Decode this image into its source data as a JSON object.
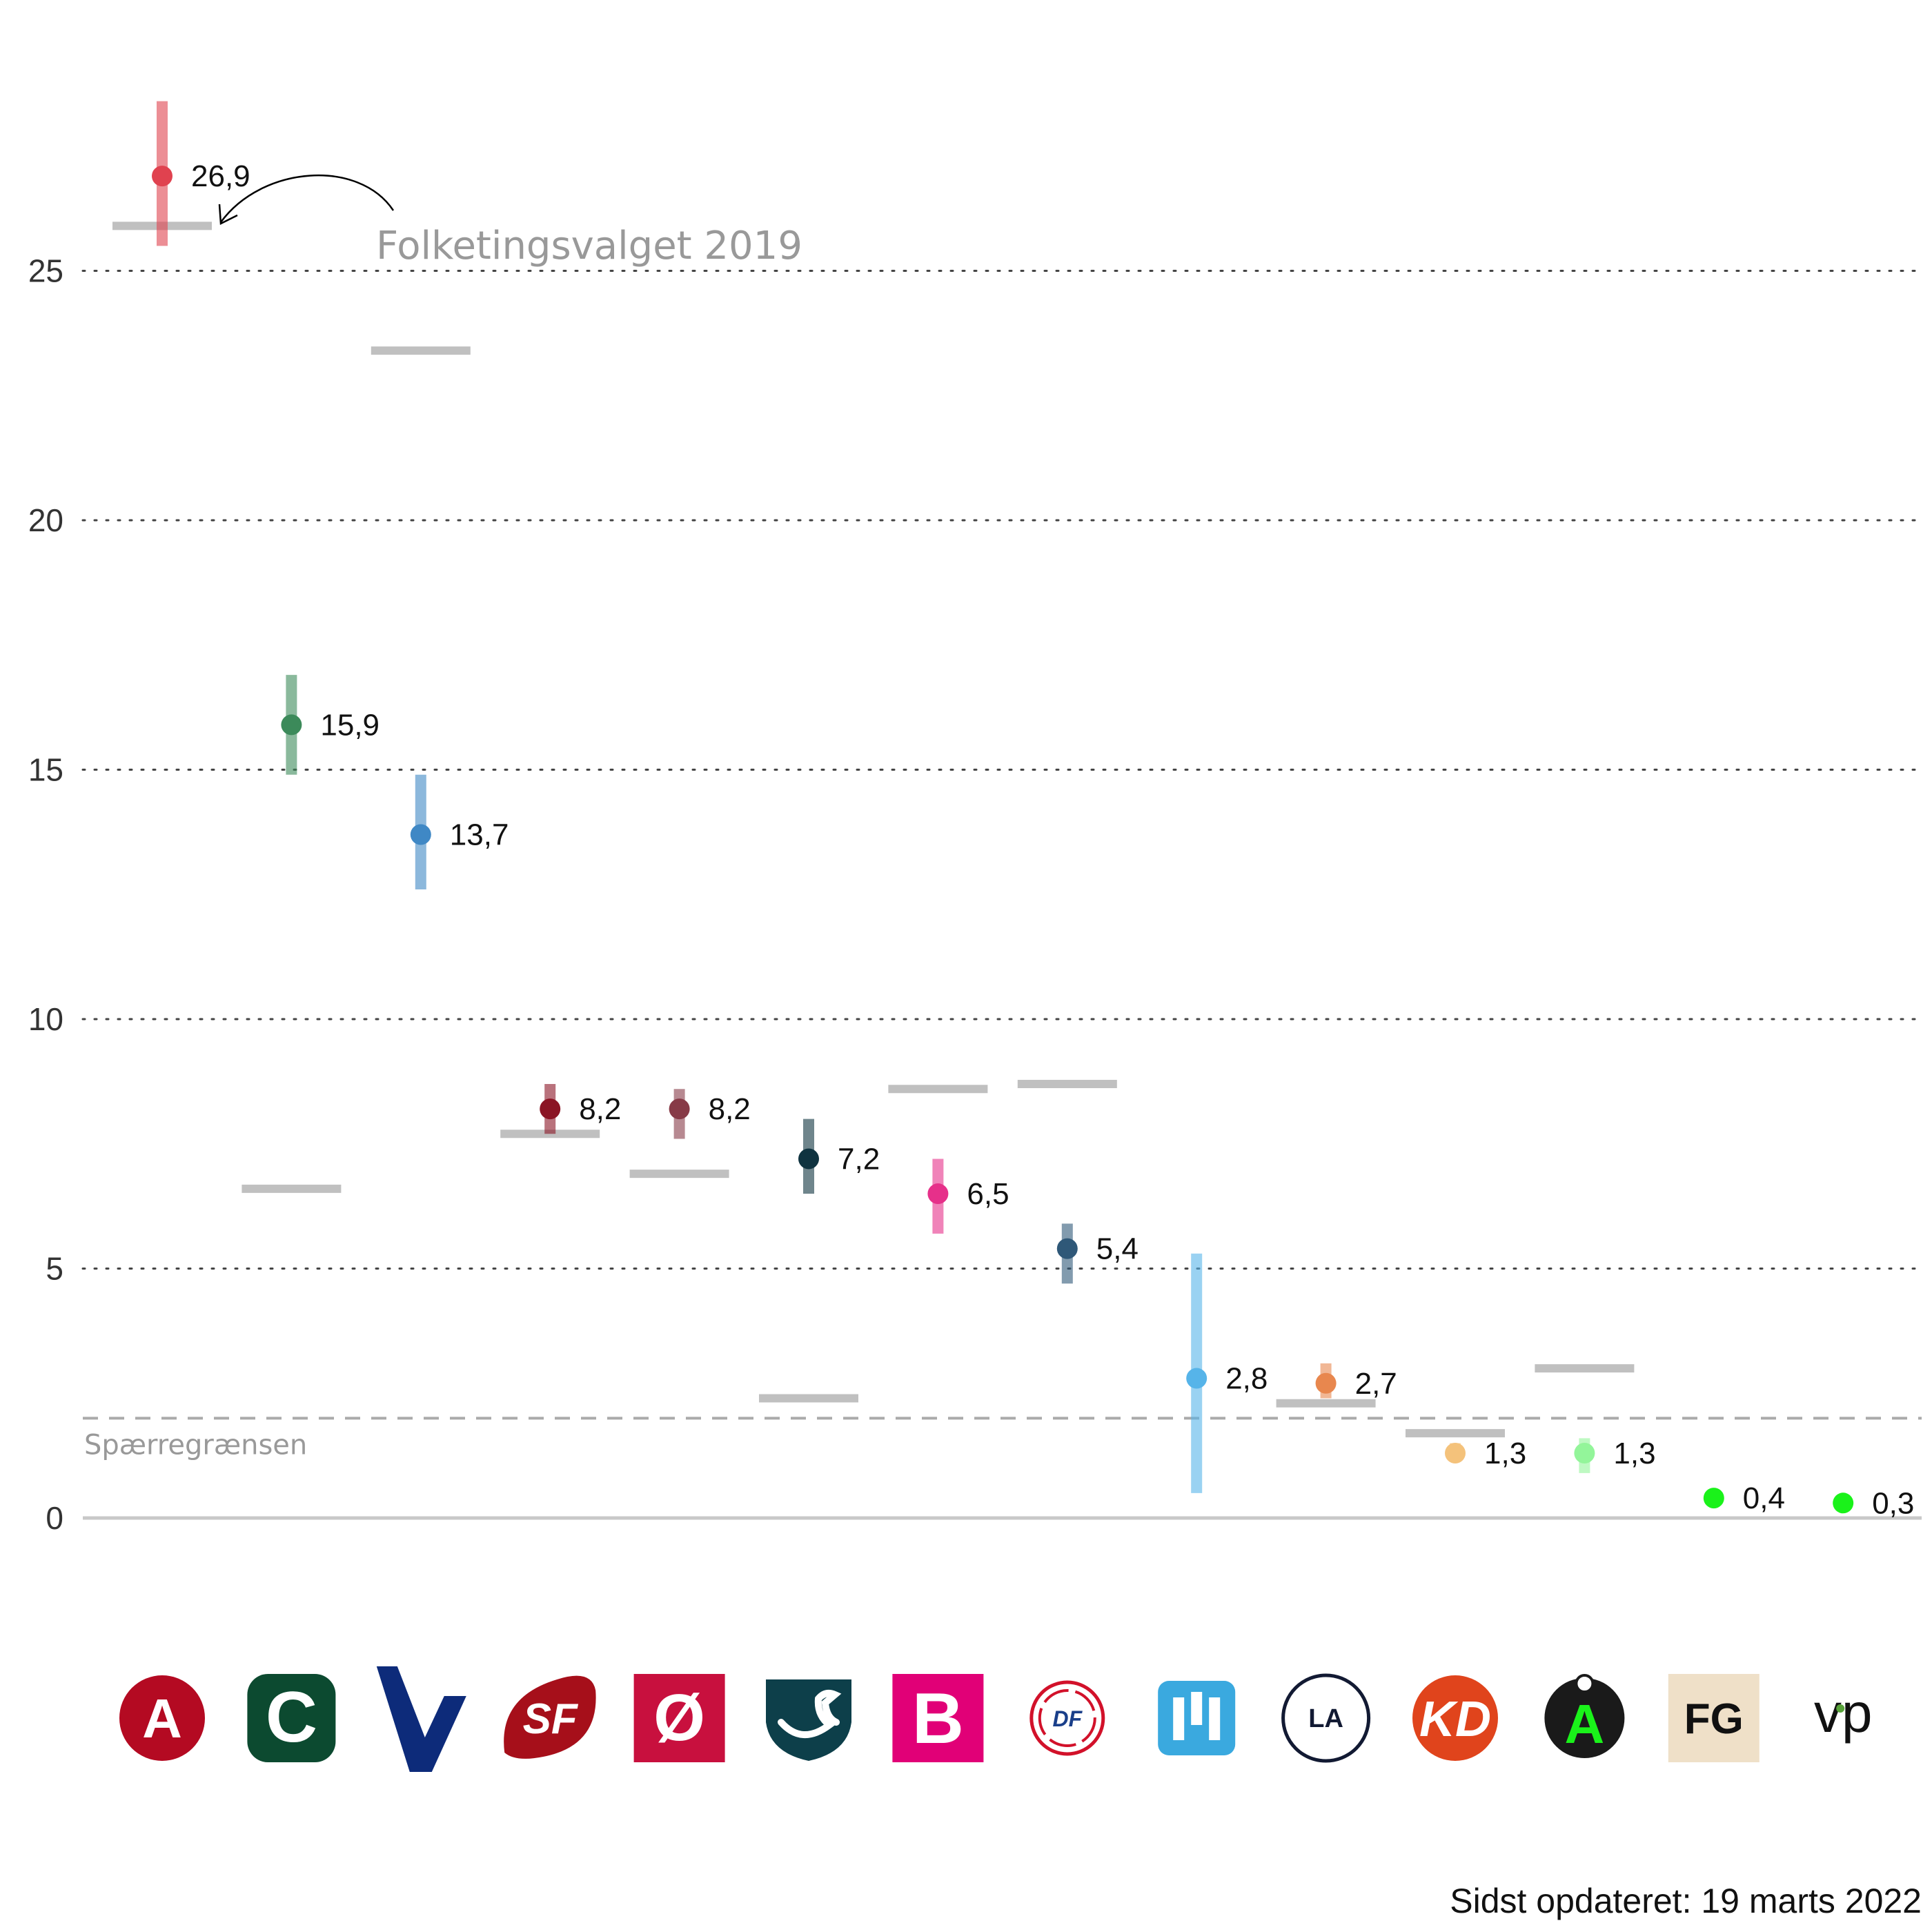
{
  "chart_data": {
    "type": "scatter",
    "title": "",
    "xlabel": "",
    "ylabel": "",
    "ylim": [
      0,
      28
    ],
    "yticks": [
      0,
      5,
      10,
      15,
      20,
      25
    ],
    "grid": "dotted horizontal",
    "threshold": {
      "value": 2,
      "label": "Spærregrænsen"
    },
    "annotation": "Folketingsvalget 2019",
    "parties": [
      {
        "letter": "A",
        "color": "#e0424f",
        "value": 26.9,
        "label": "26,9",
        "low": 25.5,
        "high": 28.4,
        "election": 25.9
      },
      {
        "letter": "C",
        "color": "#3c8a5a",
        "value": 15.9,
        "label": "15,9",
        "low": 14.9,
        "high": 16.9,
        "election": 6.6
      },
      {
        "letter": "V",
        "color": "#3f88c5",
        "value": 13.7,
        "label": "13,7",
        "low": 12.6,
        "high": 14.9,
        "election": 23.4
      },
      {
        "letter": "SF",
        "color": "#8b1424",
        "value": 8.2,
        "label": "8,2",
        "low": 7.7,
        "high": 8.7,
        "election": 7.7
      },
      {
        "letter": "Ø",
        "color": "#873a47",
        "value": 8.2,
        "label": "8,2",
        "low": 7.6,
        "high": 8.6,
        "election": 6.9
      },
      {
        "letter": "D",
        "color": "#0f3340",
        "value": 7.2,
        "label": "7,2",
        "low": 6.5,
        "high": 8.0,
        "election": 2.4
      },
      {
        "letter": "B",
        "color": "#e6308a",
        "value": 6.5,
        "label": "6,5",
        "low": 5.7,
        "high": 7.2,
        "election": 8.6
      },
      {
        "letter": "DF",
        "color": "#2f5878",
        "value": 5.4,
        "label": "5,4",
        "low": 4.7,
        "high": 5.9,
        "election": 8.7
      },
      {
        "letter": "M",
        "color": "#56b4e9",
        "value": 2.8,
        "label": "2,8",
        "low": 0.5,
        "high": 5.3,
        "election": null
      },
      {
        "letter": "LA",
        "color": "#e8874e",
        "value": 2.7,
        "label": "2,7",
        "low": 2.4,
        "high": 3.1,
        "election": 2.3
      },
      {
        "letter": "KD",
        "color": "#f4c27b",
        "value": 1.3,
        "label": "1,3",
        "low": 1.2,
        "high": 1.5,
        "election": 1.7
      },
      {
        "letter": "Å",
        "color": "#93f59a",
        "value": 1.3,
        "label": "1,3",
        "low": 0.9,
        "high": 1.6,
        "election": 3.0
      },
      {
        "letter": "FG",
        "color": "#1af21a",
        "value": 0.4,
        "label": "0,4",
        "low": 0.4,
        "high": 0.4,
        "election": null
      },
      {
        "letter": "vp",
        "color": "#1af21a",
        "value": 0.3,
        "label": "0,3",
        "low": 0.3,
        "high": 0.3,
        "election": null
      }
    ]
  },
  "logos": [
    {
      "name": "logo-a",
      "text": "A",
      "color": "#b40a22"
    },
    {
      "name": "logo-c",
      "text": "C",
      "color": "#0c4a30"
    },
    {
      "name": "logo-v",
      "text": "V",
      "color": "#0d2b7a"
    },
    {
      "name": "logo-sf",
      "text": "SF",
      "color": "#a60f1a"
    },
    {
      "name": "logo-o",
      "text": "Ø",
      "color": "#c8103e"
    },
    {
      "name": "logo-d",
      "text": "",
      "color": "#0d3f4a"
    },
    {
      "name": "logo-b",
      "text": "B",
      "color": "#e10077"
    },
    {
      "name": "logo-df",
      "text": "DF",
      "color": "#d2112a"
    },
    {
      "name": "logo-m",
      "text": "",
      "color": "#3aa9df"
    },
    {
      "name": "logo-la",
      "text": "LA",
      "color": "#121a33"
    },
    {
      "name": "logo-kd",
      "text": "KD",
      "color": "#e0441c"
    },
    {
      "name": "logo-aa",
      "text": "Å",
      "color": "#1a1a1a"
    },
    {
      "name": "logo-fg",
      "text": "FG",
      "color": "#efe0c8"
    },
    {
      "name": "logo-vp",
      "text": "vp",
      "color": "#111111"
    }
  ],
  "footer": "Sidst opdateret: 19 marts 2022"
}
